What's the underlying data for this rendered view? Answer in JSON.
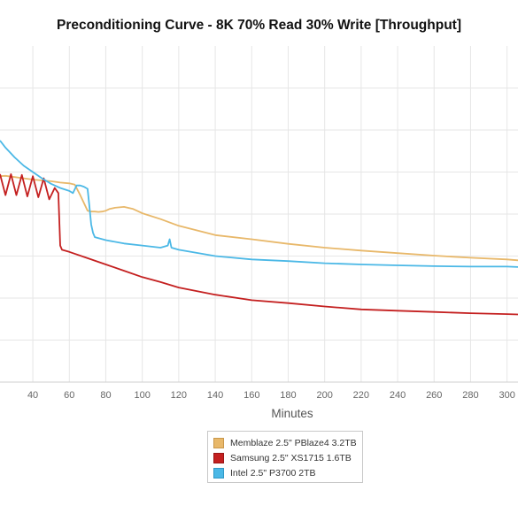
{
  "chart_data": {
    "type": "line",
    "title": "Preconditioning Curve - 8K 70% Read 30% Write [Throughput]",
    "xlabel": "Minutes",
    "ylabel": "",
    "xlim": [
      22,
      306
    ],
    "ylim": [
      0,
      8
    ],
    "x_ticks": [
      40,
      60,
      80,
      100,
      120,
      140,
      160,
      180,
      200,
      220,
      240,
      260,
      280,
      300
    ],
    "y_grid": [
      1,
      2,
      3,
      4,
      5,
      6,
      7
    ],
    "grid": true,
    "legend_placement": "bottom-center",
    "series": [
      {
        "name": "Memblaze 2.5\" PBlaze4 3.2TB",
        "color": "#e8b86a",
        "x": [
          22,
          25,
          30,
          35,
          40,
          45,
          50,
          55,
          60,
          63,
          66,
          70,
          72,
          74,
          76,
          78,
          80,
          82,
          85,
          90,
          95,
          100,
          110,
          120,
          140,
          160,
          180,
          200,
          220,
          240,
          260,
          280,
          300,
          306
        ],
        "y": [
          4.9,
          4.91,
          4.88,
          4.85,
          4.82,
          4.8,
          4.78,
          4.75,
          4.73,
          4.7,
          4.45,
          4.08,
          4.06,
          4.06,
          4.05,
          4.06,
          4.08,
          4.12,
          4.15,
          4.17,
          4.12,
          4.02,
          3.88,
          3.72,
          3.5,
          3.4,
          3.29,
          3.2,
          3.13,
          3.07,
          3.01,
          2.96,
          2.92,
          2.9
        ]
      },
      {
        "name": "Samsung 2.5\" XS1715 1.6TB",
        "color": "#c42020",
        "x": [
          22,
          25,
          28,
          31,
          34,
          37,
          40,
          43,
          46,
          49,
          52,
          54,
          55,
          56,
          60,
          70,
          80,
          90,
          100,
          110,
          120,
          140,
          160,
          180,
          200,
          220,
          240,
          260,
          280,
          300,
          306
        ],
        "y": [
          4.95,
          4.45,
          4.95,
          4.45,
          4.93,
          4.42,
          4.9,
          4.4,
          4.85,
          4.35,
          4.62,
          4.5,
          3.25,
          3.15,
          3.1,
          2.95,
          2.8,
          2.65,
          2.5,
          2.38,
          2.25,
          2.08,
          1.95,
          1.88,
          1.8,
          1.73,
          1.7,
          1.67,
          1.64,
          1.62,
          1.61
        ]
      },
      {
        "name": "Intel 2.5\" P3700 2TB",
        "color": "#4bb8e6",
        "x": [
          22,
          25,
          30,
          35,
          40,
          45,
          50,
          55,
          60,
          62,
          64,
          66,
          68,
          70,
          71,
          72,
          73,
          74,
          80,
          90,
          100,
          110,
          114,
          115,
          116,
          120,
          140,
          160,
          180,
          200,
          220,
          240,
          260,
          280,
          300,
          306
        ],
        "y": [
          5.75,
          5.58,
          5.35,
          5.15,
          5.0,
          4.85,
          4.72,
          4.62,
          4.55,
          4.5,
          4.68,
          4.68,
          4.65,
          4.6,
          4.2,
          3.75,
          3.55,
          3.45,
          3.38,
          3.3,
          3.25,
          3.2,
          3.25,
          3.4,
          3.2,
          3.15,
          3.0,
          2.92,
          2.88,
          2.83,
          2.8,
          2.78,
          2.76,
          2.75,
          2.75,
          2.74
        ]
      }
    ]
  }
}
